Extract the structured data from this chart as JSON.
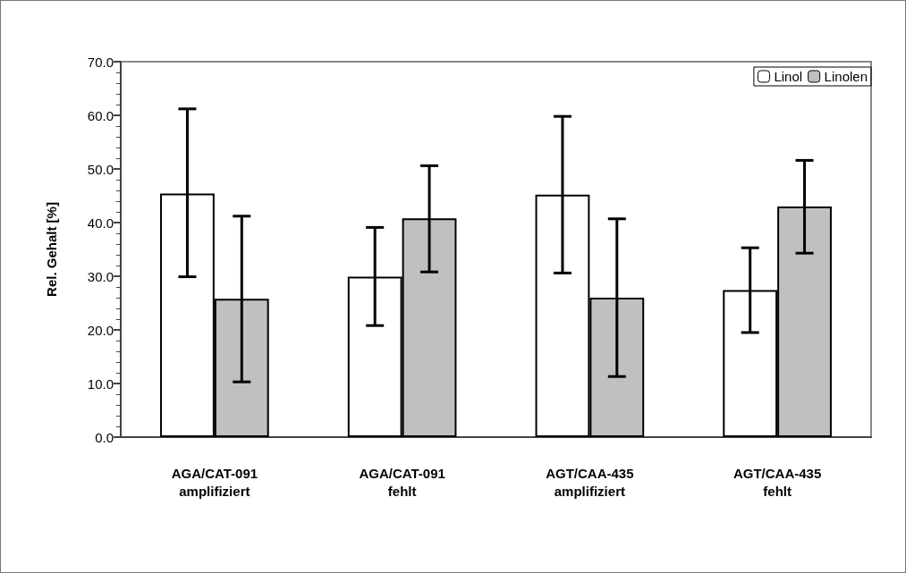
{
  "chart_data": {
    "type": "bar",
    "ylabel": "Rel. Gehalt [%]",
    "categories": [
      "AGA/CAT-091\namplifiziert",
      "AGA/CAT-091\nfehlt",
      "AGT/CAA-435\namplifiziert",
      "AGT/CAA-435\nfehlt"
    ],
    "series": [
      {
        "name": "Linol",
        "color": "#ffffff",
        "values": [
          45.4,
          29.9,
          45.2,
          27.4
        ],
        "errors": [
          [
            29.9,
            61.2
          ],
          [
            20.8,
            39.1
          ],
          [
            30.6,
            59.8
          ],
          [
            19.5,
            35.3
          ]
        ]
      },
      {
        "name": "Linolen",
        "color": "#c0c0c0",
        "values": [
          25.8,
          40.8,
          26.0,
          43.0
        ],
        "errors": [
          [
            10.3,
            41.2
          ],
          [
            30.8,
            50.6
          ],
          [
            11.3,
            40.7
          ],
          [
            34.3,
            51.6
          ]
        ]
      }
    ],
    "ylim": [
      0,
      70
    ],
    "yticks": [
      {
        "value": 0,
        "label": "0.0"
      },
      {
        "value": 10,
        "label": "10.0"
      },
      {
        "value": 20,
        "label": "20.0"
      },
      {
        "value": 30,
        "label": "30.0"
      },
      {
        "value": 40,
        "label": "40.0"
      },
      {
        "value": 50,
        "label": "50.0"
      },
      {
        "value": 60,
        "label": "60.0"
      },
      {
        "value": 70,
        "label": "70.0"
      }
    ],
    "grid": false,
    "legend": "top right"
  }
}
